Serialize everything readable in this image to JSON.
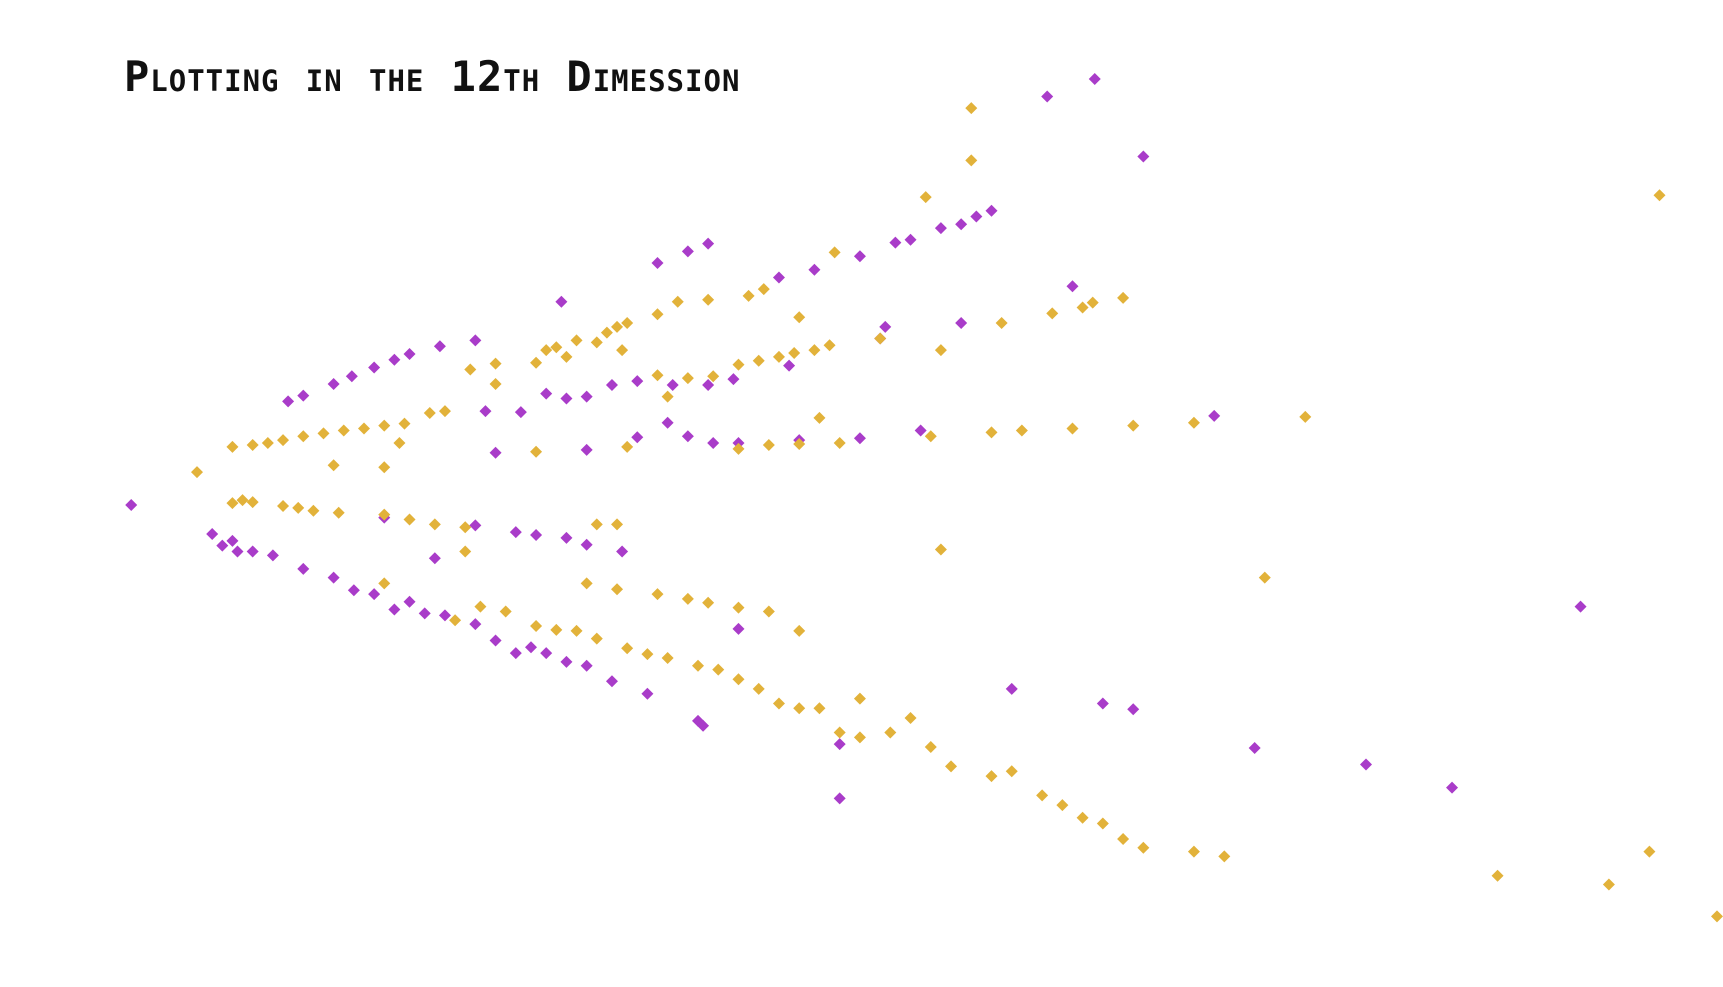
{
  "chart_data": {
    "type": "scatter",
    "title": "Plotting in the 12th Dimession",
    "xlabel": "",
    "ylabel": "",
    "grid": false,
    "axes_visible": false,
    "legend": "none",
    "xlim": [
      -0.1,
      1.55
    ],
    "ylim": [
      -0.47,
      0.47
    ],
    "series": [
      {
        "color": "#a93cc9",
        "marker": "diamond",
        "points": [
          [
            0.0,
            0.0
          ],
          [
            0.905,
            0.422
          ],
          [
            0.952,
            0.44
          ],
          [
            1.0,
            0.36
          ],
          [
            1.432,
            -0.105
          ],
          [
            0.155,
            0.107
          ],
          [
            0.17,
            0.113
          ],
          [
            0.2,
            0.125
          ],
          [
            0.218,
            0.133
          ],
          [
            0.24,
            0.142
          ],
          [
            0.26,
            0.15
          ],
          [
            0.275,
            0.156
          ],
          [
            0.305,
            0.164
          ],
          [
            0.34,
            0.17
          ],
          [
            0.425,
            0.21
          ],
          [
            0.52,
            0.25
          ],
          [
            0.55,
            0.262
          ],
          [
            0.57,
            0.27
          ],
          [
            0.64,
            0.235
          ],
          [
            0.675,
            0.243
          ],
          [
            0.72,
            0.257
          ],
          [
            0.755,
            0.271
          ],
          [
            0.77,
            0.274
          ],
          [
            0.8,
            0.286
          ],
          [
            0.82,
            0.29
          ],
          [
            0.835,
            0.298
          ],
          [
            0.85,
            0.304
          ],
          [
            0.93,
            0.226
          ],
          [
            0.35,
            0.097
          ],
          [
            0.385,
            0.096
          ],
          [
            0.41,
            0.115
          ],
          [
            0.43,
            0.11
          ],
          [
            0.45,
            0.112
          ],
          [
            0.475,
            0.124
          ],
          [
            0.5,
            0.128
          ],
          [
            0.535,
            0.124
          ],
          [
            0.57,
            0.124
          ],
          [
            0.595,
            0.13
          ],
          [
            0.65,
            0.144
          ],
          [
            0.74,
            0.172
          ],
          [
            0.745,
            0.184
          ],
          [
            0.82,
            0.188
          ],
          [
            0.36,
            0.054
          ],
          [
            0.45,
            0.057
          ],
          [
            0.5,
            0.07
          ],
          [
            0.53,
            0.085
          ],
          [
            0.55,
            0.071
          ],
          [
            0.575,
            0.064
          ],
          [
            0.6,
            0.064
          ],
          [
            0.66,
            0.067
          ],
          [
            0.72,
            0.069
          ],
          [
            0.78,
            0.077
          ],
          [
            1.07,
            0.092
          ],
          [
            0.08,
            -0.03
          ],
          [
            0.09,
            -0.042
          ],
          [
            0.1,
            -0.037
          ],
          [
            0.105,
            -0.048
          ],
          [
            0.12,
            -0.048
          ],
          [
            0.14,
            -0.052
          ],
          [
            0.17,
            -0.066
          ],
          [
            0.2,
            -0.075
          ],
          [
            0.22,
            -0.088
          ],
          [
            0.24,
            -0.092
          ],
          [
            0.26,
            -0.108
          ],
          [
            0.275,
            -0.1
          ],
          [
            0.29,
            -0.112
          ],
          [
            0.31,
            -0.114
          ],
          [
            0.34,
            -0.123
          ],
          [
            0.36,
            -0.14
          ],
          [
            0.38,
            -0.153
          ],
          [
            0.395,
            -0.147
          ],
          [
            0.41,
            -0.153
          ],
          [
            0.43,
            -0.162
          ],
          [
            0.45,
            -0.166
          ],
          [
            0.475,
            -0.182
          ],
          [
            0.51,
            -0.195
          ],
          [
            0.56,
            -0.223
          ],
          [
            0.565,
            -0.228
          ],
          [
            0.7,
            -0.247
          ],
          [
            0.7,
            -0.303
          ],
          [
            0.25,
            -0.013
          ],
          [
            0.34,
            -0.021
          ],
          [
            0.38,
            -0.028
          ],
          [
            0.4,
            -0.031
          ],
          [
            0.43,
            -0.034
          ],
          [
            0.45,
            -0.041
          ],
          [
            0.485,
            -0.048
          ],
          [
            0.3,
            -0.055
          ],
          [
            0.6,
            -0.128
          ],
          [
            0.87,
            -0.19
          ],
          [
            0.96,
            -0.205
          ],
          [
            0.99,
            -0.211
          ],
          [
            1.11,
            -0.251
          ],
          [
            1.22,
            -0.268
          ],
          [
            1.305,
            -0.292
          ]
        ]
      },
      {
        "color": "#e2b23a",
        "marker": "diamond",
        "points": [
          [
            0.065,
            0.034
          ],
          [
            0.1,
            0.06
          ],
          [
            0.12,
            0.062
          ],
          [
            0.135,
            0.064
          ],
          [
            0.15,
            0.067
          ],
          [
            0.17,
            0.071
          ],
          [
            0.19,
            0.074
          ],
          [
            0.21,
            0.077
          ],
          [
            0.23,
            0.079
          ],
          [
            0.25,
            0.082
          ],
          [
            0.27,
            0.084
          ],
          [
            0.265,
            0.064
          ],
          [
            0.295,
            0.095
          ],
          [
            0.31,
            0.097
          ],
          [
            0.335,
            0.14
          ],
          [
            0.36,
            0.146
          ],
          [
            0.41,
            0.16
          ],
          [
            0.42,
            0.163
          ],
          [
            0.44,
            0.17
          ],
          [
            0.47,
            0.178
          ],
          [
            0.48,
            0.184
          ],
          [
            0.49,
            0.188
          ],
          [
            0.52,
            0.197
          ],
          [
            0.54,
            0.21
          ],
          [
            0.57,
            0.212
          ],
          [
            0.61,
            0.216
          ],
          [
            0.625,
            0.223
          ],
          [
            0.695,
            0.261
          ],
          [
            0.785,
            0.318
          ],
          [
            0.83,
            0.356
          ],
          [
            0.83,
            0.41
          ],
          [
            0.86,
            0.188
          ],
          [
            0.91,
            0.198
          ],
          [
            0.94,
            0.204
          ],
          [
            0.95,
            0.209
          ],
          [
            0.98,
            0.214
          ],
          [
            0.52,
            0.134
          ],
          [
            0.55,
            0.131
          ],
          [
            0.575,
            0.133
          ],
          [
            0.6,
            0.145
          ],
          [
            0.66,
            0.194
          ],
          [
            0.36,
            0.125
          ],
          [
            0.4,
            0.147
          ],
          [
            0.43,
            0.153
          ],
          [
            0.46,
            0.168
          ],
          [
            0.485,
            0.16
          ],
          [
            0.53,
            0.112
          ],
          [
            0.62,
            0.149
          ],
          [
            0.64,
            0.153
          ],
          [
            0.655,
            0.157
          ],
          [
            0.675,
            0.16
          ],
          [
            0.69,
            0.165
          ],
          [
            0.74,
            0.172
          ],
          [
            0.8,
            0.16
          ],
          [
            0.68,
            0.09
          ],
          [
            0.4,
            0.055
          ],
          [
            0.49,
            0.06
          ],
          [
            0.6,
            0.058
          ],
          [
            0.63,
            0.062
          ],
          [
            0.66,
            0.063
          ],
          [
            0.7,
            0.064
          ],
          [
            0.79,
            0.071
          ],
          [
            0.85,
            0.075
          ],
          [
            0.88,
            0.077
          ],
          [
            0.93,
            0.079
          ],
          [
            0.99,
            0.082
          ],
          [
            1.05,
            0.085
          ],
          [
            1.16,
            0.091
          ],
          [
            1.51,
            0.32
          ],
          [
            0.2,
            0.041
          ],
          [
            0.25,
            0.039
          ],
          [
            0.1,
            0.002
          ],
          [
            0.11,
            0.005
          ],
          [
            0.12,
            0.003
          ],
          [
            0.15,
            -0.001
          ],
          [
            0.165,
            -0.003
          ],
          [
            0.18,
            -0.006
          ],
          [
            0.205,
            -0.008
          ],
          [
            0.25,
            -0.01
          ],
          [
            0.275,
            -0.015
          ],
          [
            0.3,
            -0.02
          ],
          [
            0.33,
            -0.023
          ],
          [
            0.33,
            -0.048
          ],
          [
            0.46,
            -0.02
          ],
          [
            0.48,
            -0.02
          ],
          [
            0.8,
            -0.046
          ],
          [
            1.12,
            -0.075
          ],
          [
            0.25,
            -0.081
          ],
          [
            0.45,
            -0.081
          ],
          [
            0.48,
            -0.087
          ],
          [
            0.52,
            -0.092
          ],
          [
            0.55,
            -0.097
          ],
          [
            0.57,
            -0.101
          ],
          [
            0.6,
            -0.106
          ],
          [
            0.63,
            -0.11
          ],
          [
            0.66,
            -0.13
          ],
          [
            0.32,
            -0.119
          ],
          [
            0.345,
            -0.105
          ],
          [
            0.37,
            -0.11
          ],
          [
            0.4,
            -0.125
          ],
          [
            0.42,
            -0.129
          ],
          [
            0.44,
            -0.13
          ],
          [
            0.46,
            -0.138
          ],
          [
            0.49,
            -0.148
          ],
          [
            0.51,
            -0.154
          ],
          [
            0.53,
            -0.158
          ],
          [
            0.56,
            -0.166
          ],
          [
            0.58,
            -0.17
          ],
          [
            0.6,
            -0.18
          ],
          [
            0.62,
            -0.19
          ],
          [
            0.64,
            -0.205
          ],
          [
            0.66,
            -0.21
          ],
          [
            0.68,
            -0.21
          ],
          [
            0.72,
            -0.2
          ],
          [
            0.77,
            -0.22
          ],
          [
            0.7,
            -0.235
          ],
          [
            0.72,
            -0.24
          ],
          [
            0.75,
            -0.235
          ],
          [
            0.79,
            -0.25
          ],
          [
            0.81,
            -0.27
          ],
          [
            0.85,
            -0.28
          ],
          [
            0.87,
            -0.275
          ],
          [
            0.9,
            -0.3
          ],
          [
            0.92,
            -0.31
          ],
          [
            0.94,
            -0.323
          ],
          [
            0.96,
            -0.329
          ],
          [
            0.98,
            -0.345
          ],
          [
            1.0,
            -0.354
          ],
          [
            1.05,
            -0.358
          ],
          [
            1.08,
            -0.363
          ],
          [
            1.35,
            -0.383
          ],
          [
            1.46,
            -0.392
          ],
          [
            1.5,
            -0.358
          ],
          [
            1.58,
            -0.425
          ]
        ]
      }
    ]
  }
}
